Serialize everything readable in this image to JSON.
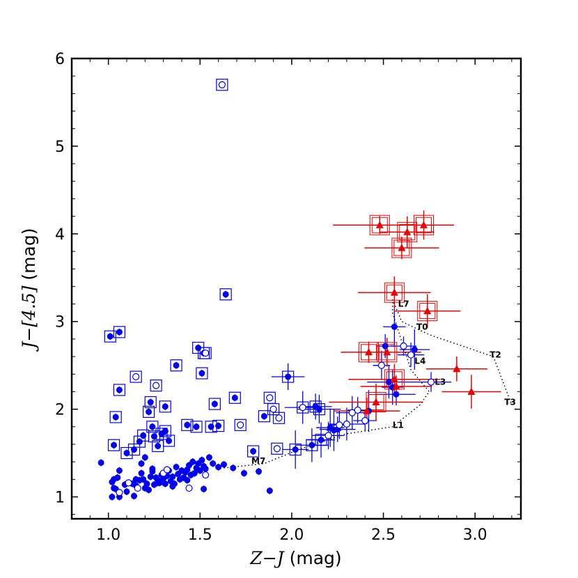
{
  "chart_data": {
    "type": "scatter",
    "title": "",
    "xlabel": "Z−J (mag)",
    "ylabel": "J−[4.5] (mag)",
    "xlabel_parts": {
      "var": "Z−J",
      "unit": " (mag)"
    },
    "ylabel_parts": {
      "var": "J−[4.5]",
      "unit": " (mag)"
    },
    "xlim": [
      0.8,
      3.25
    ],
    "ylim": [
      0.75,
      6.0
    ],
    "x_ticks": [
      1.0,
      1.5,
      2.0,
      2.5,
      3.0
    ],
    "x_tick_labels": [
      "1.0",
      "1.5",
      "2.0",
      "2.5",
      "3.0"
    ],
    "y_ticks": [
      1,
      2,
      3,
      4,
      5,
      6
    ],
    "y_tick_labels": [
      "1",
      "2",
      "3",
      "4",
      "5",
      "6"
    ],
    "colors": {
      "blue": "#0000ee",
      "red": "#ee0000",
      "sequence": "#000000"
    },
    "sequence": {
      "points": [
        [
          1.63,
          1.33
        ],
        [
          1.85,
          1.38
        ],
        [
          2.05,
          1.55
        ],
        [
          2.3,
          1.72
        ],
        [
          2.55,
          1.8
        ],
        [
          2.7,
          2.05
        ],
        [
          2.75,
          2.2
        ],
        [
          2.65,
          2.45
        ],
        [
          2.55,
          3.1
        ],
        [
          2.55,
          3.25
        ],
        [
          2.6,
          3.0
        ],
        [
          2.75,
          2.85
        ],
        [
          3.1,
          2.6
        ],
        [
          3.2,
          2.05
        ]
      ],
      "labels": [
        {
          "text": "M7",
          "x": 1.78,
          "y": 1.41
        },
        {
          "text": "L1",
          "x": 2.55,
          "y": 1.82
        },
        {
          "text": "L3",
          "x": 2.78,
          "y": 2.31
        },
        {
          "text": "L4",
          "x": 2.67,
          "y": 2.55
        },
        {
          "text": "L7",
          "x": 2.58,
          "y": 3.2
        },
        {
          "text": "T0",
          "x": 2.68,
          "y": 2.94
        },
        {
          "text": "T2",
          "x": 3.08,
          "y": 2.62
        },
        {
          "text": "T3",
          "x": 3.16,
          "y": 2.08
        }
      ]
    },
    "series": [
      {
        "name": "blue filled",
        "marker": "filled-circle",
        "color": "#0000ee",
        "points": [
          [
            0.96,
            1.39
          ],
          [
            1.02,
            1.0
          ],
          [
            1.03,
            1.1
          ],
          [
            1.04,
            1.09
          ],
          [
            1.02,
            1.17
          ],
          [
            1.05,
            1.22
          ],
          [
            1.06,
            1.3
          ],
          [
            1.03,
            1.2
          ],
          [
            1.06,
            1.0
          ],
          [
            1.09,
            1.14
          ],
          [
            1.1,
            1.06
          ],
          [
            1.13,
            1.15
          ],
          [
            1.15,
            1.2
          ],
          [
            1.15,
            1.13
          ],
          [
            1.17,
            1.19
          ],
          [
            1.18,
            1.27
          ],
          [
            1.19,
            1.2
          ],
          [
            1.2,
            1.1
          ],
          [
            1.21,
            1.15
          ],
          [
            1.22,
            1.08
          ],
          [
            1.23,
            1.23
          ],
          [
            1.24,
            1.29
          ],
          [
            1.25,
            1.14
          ],
          [
            1.26,
            1.22
          ],
          [
            1.27,
            1.19
          ],
          [
            1.28,
            1.16
          ],
          [
            1.29,
            1.25
          ],
          [
            1.3,
            1.21
          ],
          [
            1.31,
            1.15
          ],
          [
            1.32,
            1.24
          ],
          [
            1.33,
            1.3
          ],
          [
            1.34,
            1.18
          ],
          [
            1.35,
            1.23
          ],
          [
            1.36,
            1.15
          ],
          [
            1.37,
            1.34
          ],
          [
            1.38,
            1.26
          ],
          [
            1.39,
            1.2
          ],
          [
            1.4,
            1.3
          ],
          [
            1.41,
            1.22
          ],
          [
            1.42,
            1.28
          ],
          [
            1.43,
            1.19
          ],
          [
            1.44,
            1.36
          ],
          [
            1.45,
            1.25
          ],
          [
            1.46,
            1.4
          ],
          [
            1.47,
            1.27
          ],
          [
            1.48,
            1.33
          ],
          [
            1.49,
            1.38
          ],
          [
            1.5,
            1.3
          ],
          [
            1.51,
            1.42
          ],
          [
            1.52,
            1.35
          ],
          [
            1.53,
            1.32
          ],
          [
            1.55,
            1.45
          ],
          [
            1.57,
            1.38
          ],
          [
            1.6,
            1.34
          ],
          [
            1.63,
            1.37
          ],
          [
            1.68,
            1.33
          ],
          [
            1.74,
            1.27
          ],
          [
            1.79,
            1.52
          ],
          [
            1.82,
            1.29
          ],
          [
            1.88,
            1.07
          ],
          [
            1.52,
            1.09
          ],
          [
            1.43,
            1.31
          ],
          [
            1.14,
            1.01
          ],
          [
            1.27,
            1.16
          ],
          [
            1.35,
            1.12
          ],
          [
            1.24,
            1.32
          ],
          [
            1.18,
            1.38
          ],
          [
            1.3,
            1.27
          ],
          [
            2.02,
            1.54
          ],
          [
            2.11,
            1.59
          ],
          [
            2.16,
            1.65
          ],
          [
            2.21,
            1.79
          ],
          [
            2.23,
            1.76
          ],
          [
            2.25,
            1.77
          ],
          [
            2.42,
            1.98
          ],
          [
            2.55,
            2.25
          ],
          [
            2.57,
            2.17
          ],
          [
            2.53,
            2.31
          ],
          [
            2.56,
            2.94
          ],
          [
            2.51,
            2.72
          ],
          [
            2.67,
            2.68
          ],
          [
            1.01,
            2.83
          ],
          [
            1.06,
            2.88
          ],
          [
            1.06,
            2.22
          ],
          [
            1.04,
            1.91
          ],
          [
            1.03,
            1.59
          ],
          [
            1.1,
            1.5
          ],
          [
            1.14,
            1.54
          ],
          [
            1.17,
            1.63
          ],
          [
            1.19,
            1.7
          ],
          [
            1.2,
            1.45
          ],
          [
            1.22,
            1.97
          ],
          [
            1.23,
            2.08
          ],
          [
            1.24,
            1.8
          ],
          [
            1.25,
            1.69
          ],
          [
            1.27,
            1.58
          ],
          [
            1.29,
            1.72
          ],
          [
            1.31,
            2.03
          ],
          [
            1.31,
            1.75
          ],
          [
            1.33,
            1.64
          ],
          [
            1.37,
            2.5
          ],
          [
            1.43,
            1.82
          ],
          [
            1.48,
            1.8
          ],
          [
            1.49,
            2.7
          ],
          [
            1.51,
            2.41
          ],
          [
            1.52,
            2.64
          ],
          [
            1.56,
            1.8
          ],
          [
            1.58,
            2.06
          ],
          [
            1.6,
            1.81
          ],
          [
            1.64,
            3.31
          ],
          [
            1.69,
            2.13
          ],
          [
            1.85,
            1.92
          ],
          [
            1.98,
            2.37
          ],
          [
            2.13,
            2.03
          ],
          [
            2.15,
            2.0
          ]
        ]
      },
      {
        "name": "blue open",
        "marker": "open-circle",
        "color": "#0000ee",
        "points": [
          [
            1.62,
            5.7
          ],
          [
            1.15,
            2.37
          ],
          [
            1.26,
            2.27
          ],
          [
            1.53,
            2.64
          ],
          [
            1.88,
            2.13
          ],
          [
            1.72,
            1.82
          ],
          [
            1.93,
            1.9
          ],
          [
            1.9,
            2.0
          ],
          [
            2.06,
            2.02
          ],
          [
            2.33,
            1.96
          ],
          [
            2.3,
            1.83
          ],
          [
            2.2,
            1.7
          ],
          [
            2.4,
            1.87
          ],
          [
            2.36,
            1.99
          ],
          [
            2.26,
            1.82
          ],
          [
            2.61,
            2.72
          ],
          [
            2.76,
            2.31
          ],
          [
            2.65,
            2.62
          ],
          [
            1.92,
            1.55
          ],
          [
            1.53,
            1.25
          ],
          [
            1.44,
            1.1
          ],
          [
            1.3,
            1.27
          ],
          [
            1.06,
            1.05
          ],
          [
            1.16,
            1.1
          ],
          [
            1.11,
            1.16
          ],
          [
            1.32,
            1.31
          ],
          [
            2.49,
            2.5
          ]
        ]
      },
      {
        "name": "red",
        "marker": "filled-triangle",
        "color": "#ee0000",
        "points": [
          [
            2.48,
            4.1
          ],
          [
            2.63,
            4.02
          ],
          [
            2.72,
            4.1
          ],
          [
            2.6,
            3.84
          ],
          [
            2.56,
            3.33
          ],
          [
            2.74,
            3.12
          ],
          [
            2.42,
            2.65
          ],
          [
            2.52,
            2.65
          ],
          [
            2.56,
            2.34
          ],
          [
            2.57,
            2.26
          ],
          [
            2.9,
            2.46
          ],
          [
            2.98,
            2.2
          ],
          [
            2.46,
            2.08
          ],
          [
            2.41,
            1.98
          ]
        ]
      }
    ]
  }
}
